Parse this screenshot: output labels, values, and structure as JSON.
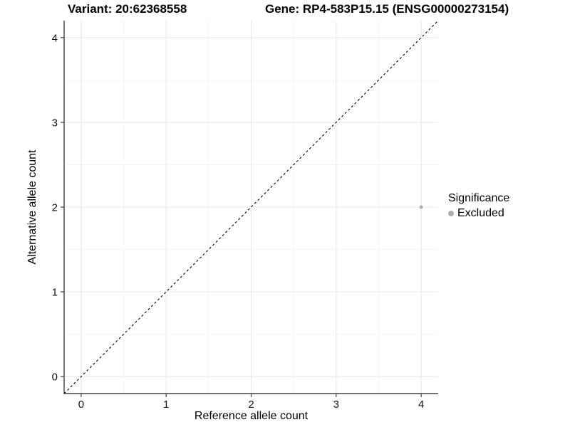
{
  "chart_data": {
    "type": "scatter",
    "title_variant": "Variant: 20:62368558",
    "title_gene": "Gene: RP4-583P15.15 (ENSG00000273154)",
    "xlabel": "Reference allele count",
    "ylabel": "Alternative allele count",
    "xlim": [
      -0.2,
      4.2
    ],
    "ylim": [
      -0.2,
      4.2
    ],
    "x_ticks": [
      0,
      1,
      2,
      3,
      4
    ],
    "y_ticks": [
      0,
      1,
      2,
      3,
      4
    ],
    "minor_ticks": [
      0.5,
      1.5,
      2.5,
      3.5
    ],
    "grid": true,
    "identity_line": {
      "style": "dashed",
      "slope": 1,
      "intercept": 0,
      "color": "#000000"
    },
    "series": [
      {
        "name": "Excluded",
        "color": "#b0b0b0",
        "points": [
          {
            "x": 4,
            "y": 2
          }
        ]
      }
    ],
    "legend": {
      "title": "Significance",
      "position": "right",
      "items": [
        {
          "label": "Excluded",
          "color": "#b0b0b0"
        }
      ]
    },
    "colors": {
      "grid_major": "#e9e9e9",
      "grid_minor": "#f4f4f4",
      "axis_line": "#404040",
      "tick_mark": "#404040",
      "point": "#b0b0b0",
      "background": "#ffffff"
    }
  }
}
